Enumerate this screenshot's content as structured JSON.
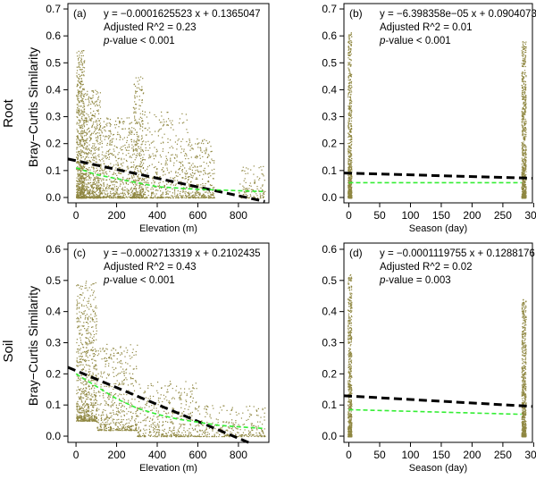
{
  "figure": {
    "row_labels": [
      "Root",
      "Soil"
    ],
    "y_axis_label": "Bray−Curtis Similarity",
    "colors": {
      "points": "#8f8741",
      "regression_line": "#000000",
      "loess_line": "#33ee33",
      "frame": "#000000"
    }
  },
  "chart_data": [
    {
      "panel": "(a)",
      "type": "scatter",
      "row": "Root",
      "xlabel": "Elevation (m)",
      "ylabel": "",
      "xlim": [
        -40,
        950
      ],
      "ylim": [
        -0.02,
        0.72
      ],
      "xticks": [
        0,
        200,
        400,
        600,
        800
      ],
      "yticks": [
        0.0,
        0.1,
        0.2,
        0.3,
        0.4,
        0.5,
        0.6,
        0.7
      ],
      "equation": "y = −0.0001625523 x + 0.1365047",
      "adjusted_r2": "Adjusted R^2 = 0.23",
      "p_value_label": "p",
      "p_value_text": "-value < 0.001",
      "regression": {
        "slope": -0.0001625523,
        "intercept": 0.1365047,
        "x_range": [
          -40,
          930
        ]
      },
      "loess": [
        [
          0,
          0.11
        ],
        [
          100,
          0.085
        ],
        [
          200,
          0.07
        ],
        [
          300,
          0.055
        ],
        [
          400,
          0.04
        ],
        [
          500,
          0.035
        ],
        [
          600,
          0.03
        ],
        [
          700,
          0.028
        ],
        [
          800,
          0.025
        ],
        [
          920,
          0.022
        ]
      ],
      "scatter_bands": [
        {
          "x": [
            0,
            40
          ],
          "y": [
            0.0,
            0.55
          ],
          "weight": 1.0
        },
        {
          "x": [
            40,
            120
          ],
          "y": [
            0.0,
            0.4
          ],
          "weight": 0.8
        },
        {
          "x": [
            120,
            280
          ],
          "y": [
            0.0,
            0.3
          ],
          "weight": 0.7
        },
        {
          "x": [
            280,
            330
          ],
          "y": [
            0.0,
            0.45
          ],
          "weight": 0.5
        },
        {
          "x": [
            330,
            550
          ],
          "y": [
            0.0,
            0.32
          ],
          "weight": 0.6
        },
        {
          "x": [
            550,
            680
          ],
          "y": [
            0.0,
            0.22
          ],
          "weight": 0.4
        },
        {
          "x": [
            800,
            930
          ],
          "y": [
            0.0,
            0.12
          ],
          "weight": 0.15
        }
      ]
    },
    {
      "panel": "(b)",
      "type": "scatter",
      "row": "Root",
      "xlabel": "Season (day)",
      "ylabel": "",
      "xlim": [
        -8,
        298
      ],
      "ylim": [
        -0.02,
        0.72
      ],
      "xticks": [
        0,
        50,
        100,
        150,
        200,
        250,
        300
      ],
      "yticks": [
        0.0,
        0.1,
        0.2,
        0.3,
        0.4,
        0.5,
        0.6,
        0.7
      ],
      "equation": "y = −6.398358e−05 x + 0.09040737",
      "adjusted_r2": "Adjusted R^2 = 0.01",
      "p_value_label": "p",
      "p_value_text": "-value < 0.001",
      "regression": {
        "slope": -6.398358e-05,
        "intercept": 0.09040737,
        "x_range": [
          -8,
          298
        ]
      },
      "loess": [
        [
          0,
          0.055
        ],
        [
          280,
          0.055
        ]
      ],
      "scatter_bands": [
        {
          "x": [
            -2,
            4
          ],
          "y": [
            0.0,
            0.62
          ],
          "weight": 1.0
        },
        {
          "x": [
            280,
            287
          ],
          "y": [
            0.0,
            0.58
          ],
          "weight": 1.0
        }
      ]
    },
    {
      "panel": "(c)",
      "type": "scatter",
      "row": "Soil",
      "xlabel": "Elevation (m)",
      "ylabel": "",
      "xlim": [
        -40,
        950
      ],
      "ylim": [
        -0.02,
        0.62
      ],
      "xticks": [
        0,
        200,
        400,
        600,
        800
      ],
      "yticks": [
        0.0,
        0.1,
        0.2,
        0.3,
        0.4,
        0.5,
        0.6
      ],
      "equation": "y = −0.0002713319 x + 0.2102435",
      "adjusted_r2": "Adjusted R^2 = 0.43",
      "p_value_label": "p",
      "p_value_text": "-value < 0.001",
      "regression": {
        "slope": -0.0002713319,
        "intercept": 0.2102435,
        "x_range": [
          -40,
          860
        ]
      },
      "loess": [
        [
          0,
          0.2
        ],
        [
          100,
          0.16
        ],
        [
          200,
          0.12
        ],
        [
          300,
          0.09
        ],
        [
          400,
          0.07
        ],
        [
          500,
          0.055
        ],
        [
          600,
          0.045
        ],
        [
          700,
          0.035
        ],
        [
          800,
          0.03
        ],
        [
          920,
          0.025
        ]
      ],
      "scatter_bands": [
        {
          "x": [
            0,
            100
          ],
          "y": [
            0.05,
            0.5
          ],
          "weight": 1.0
        },
        {
          "x": [
            100,
            300
          ],
          "y": [
            0.02,
            0.3
          ],
          "weight": 0.7
        },
        {
          "x": [
            300,
            600
          ],
          "y": [
            0.0,
            0.18
          ],
          "weight": 0.6
        },
        {
          "x": [
            600,
            930
          ],
          "y": [
            0.0,
            0.1
          ],
          "weight": 0.4
        }
      ]
    },
    {
      "panel": "(d)",
      "type": "scatter",
      "row": "Soil",
      "xlabel": "Season (day)",
      "ylabel": "",
      "xlim": [
        -8,
        298
      ],
      "ylim": [
        -0.02,
        0.62
      ],
      "xticks": [
        0,
        50,
        100,
        150,
        200,
        250,
        300
      ],
      "yticks": [
        0.0,
        0.1,
        0.2,
        0.3,
        0.4,
        0.5,
        0.6
      ],
      "equation": "y = −0.0001119755 x + 0.1288176",
      "adjusted_r2": "Adjusted R^2 = 0.02",
      "p_value_label": "p",
      "p_value_text": "-value = 0.003",
      "regression": {
        "slope": -0.0001119755,
        "intercept": 0.1288176,
        "x_range": [
          -8,
          298
        ]
      },
      "loess": [
        [
          0,
          0.085
        ],
        [
          280,
          0.07
        ]
      ],
      "scatter_bands": [
        {
          "x": [
            -2,
            4
          ],
          "y": [
            0.0,
            0.52
          ],
          "weight": 1.0
        },
        {
          "x": [
            280,
            287
          ],
          "y": [
            0.0,
            0.44
          ],
          "weight": 1.0
        }
      ]
    }
  ]
}
